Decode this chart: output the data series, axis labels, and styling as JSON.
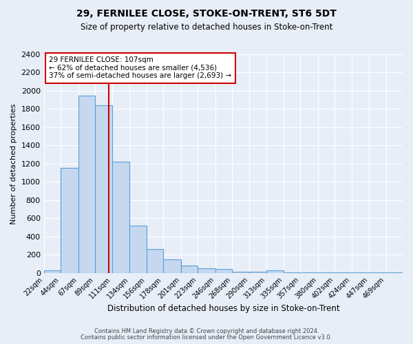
{
  "title": "29, FERNILEE CLOSE, STOKE-ON-TRENT, ST6 5DT",
  "subtitle": "Size of property relative to detached houses in Stoke-on-Trent",
  "xlabel": "Distribution of detached houses by size in Stoke-on-Trent",
  "ylabel": "Number of detached properties",
  "footer_line1": "Contains HM Land Registry data © Crown copyright and database right 2024.",
  "footer_line2": "Contains public sector information licensed under the Open Government Licence v3.0.",
  "bin_labels": [
    "22sqm",
    "44sqm",
    "67sqm",
    "89sqm",
    "111sqm",
    "134sqm",
    "156sqm",
    "178sqm",
    "201sqm",
    "223sqm",
    "246sqm",
    "268sqm",
    "290sqm",
    "313sqm",
    "335sqm",
    "357sqm",
    "380sqm",
    "402sqm",
    "424sqm",
    "447sqm",
    "469sqm"
  ],
  "bin_edges": [
    22,
    44,
    67,
    89,
    111,
    134,
    156,
    178,
    201,
    223,
    246,
    268,
    290,
    313,
    335,
    357,
    380,
    402,
    424,
    447,
    469,
    491
  ],
  "bar_heights": [
    30,
    1150,
    1950,
    1840,
    1220,
    520,
    265,
    150,
    80,
    50,
    40,
    15,
    10,
    30,
    5,
    5,
    5,
    5,
    5,
    5,
    5
  ],
  "bar_color": "#c5d8f0",
  "bar_edge_color": "#5a9fd4",
  "bg_color": "#e8eef8",
  "grid_color": "#ffffff",
  "ylim": [
    0,
    2400
  ],
  "xlim_left": 22,
  "xlim_right": 491,
  "property_line_x": 107,
  "property_line_color": "#cc0000",
  "annotation_title": "29 FERNILEE CLOSE: 107sqm",
  "annotation_line1": "← 62% of detached houses are smaller (4,536)",
  "annotation_line2": "37% of semi-detached houses are larger (2,693) →",
  "annotation_box_color": "#ffffff",
  "annotation_box_edgecolor": "#cc0000",
  "yticks": [
    0,
    200,
    400,
    600,
    800,
    1000,
    1200,
    1400,
    1600,
    1800,
    2000,
    2200,
    2400
  ]
}
